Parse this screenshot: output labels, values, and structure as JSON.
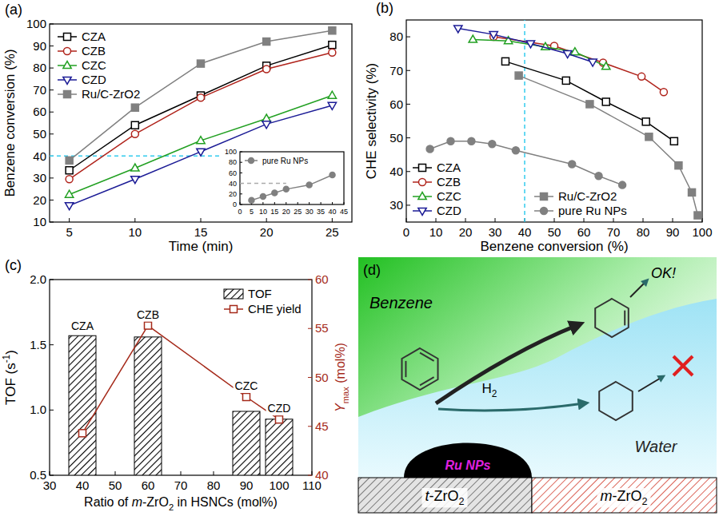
{
  "chart_data": [
    {
      "panel": "(a)",
      "type": "line",
      "xlabel": "Time (min)",
      "ylabel": "Benzene conversion (%)",
      "x": [
        5,
        10,
        15,
        20,
        25
      ],
      "xlim": [
        3.5,
        26.5
      ],
      "xticks": [
        5,
        10,
        15,
        20,
        25
      ],
      "ylim": [
        10,
        100
      ],
      "yticks": [
        10,
        20,
        30,
        40,
        50,
        60,
        70,
        80,
        90,
        100
      ],
      "legend": "upper left",
      "series": [
        {
          "name": "CZA",
          "color": "#000000",
          "marker": "square-open",
          "values": [
            33.5,
            54,
            67.5,
            81,
            90.5
          ]
        },
        {
          "name": "CZB",
          "color": "#b0231b",
          "marker": "circle-open",
          "values": [
            29.5,
            50,
            66.5,
            79.5,
            87
          ]
        },
        {
          "name": "CZC",
          "color": "#22a022",
          "marker": "triangle-up-open",
          "values": [
            22.5,
            34.5,
            47,
            57,
            67.5
          ]
        },
        {
          "name": "CZD",
          "color": "#1c1c96",
          "marker": "triangle-down-open",
          "values": [
            17.5,
            29.5,
            42,
            54.5,
            63
          ]
        },
        {
          "name": "Ru/C-ZrO2",
          "color": "#808080",
          "marker": "square",
          "values": [
            38,
            62,
            82,
            92,
            97
          ]
        }
      ],
      "reference_lines": [
        {
          "axis": "y",
          "value": 40,
          "x_end": 16.5,
          "color": "#33ccee",
          "line_style": "dashed"
        }
      ],
      "inset": {
        "type": "line",
        "legend": "upper left",
        "xlim": [
          0,
          45
        ],
        "xticks": [
          0,
          5,
          10,
          15,
          20,
          25,
          30,
          35,
          40,
          45
        ],
        "ylim": [
          0,
          100
        ],
        "yticks": [
          0,
          20,
          40,
          60,
          80,
          100
        ],
        "series": [
          {
            "name": "pure Ru NPs",
            "color": "#808080",
            "marker": "circle",
            "x": [
              5,
              10,
              15,
              20,
              30,
              40
            ],
            "values": [
              8,
              15,
              22,
              29,
              37,
              56
            ]
          }
        ],
        "reference_lines": [
          {
            "axis": "y",
            "value": 40,
            "x_end": 20,
            "color": "#aaaaaa",
            "line_style": "dashed"
          }
        ]
      }
    },
    {
      "panel": "(b)",
      "type": "line",
      "xlabel": "Benzene conversion (%)",
      "ylabel": "CHE selectivity (%)",
      "xlim": [
        0,
        100
      ],
      "xticks": [
        0,
        10,
        20,
        30,
        40,
        50,
        60,
        70,
        80,
        90,
        100
      ],
      "ylim": [
        25,
        85
      ],
      "yticks": [
        30,
        40,
        50,
        60,
        70,
        80
      ],
      "legend": "lower left",
      "series": [
        {
          "name": "CZA",
          "color": "#000000",
          "marker": "square-open",
          "x": [
            33.5,
            54,
            67.5,
            81,
            90.5
          ],
          "values": [
            72.7,
            67,
            60.7,
            54.8,
            49
          ]
        },
        {
          "name": "CZB",
          "color": "#b0231b",
          "marker": "circle-open",
          "x": [
            29.5,
            50,
            66.5,
            79.5,
            87
          ],
          "values": [
            80,
            77.3,
            72.3,
            68.2,
            63.6
          ]
        },
        {
          "name": "CZC",
          "color": "#22a022",
          "marker": "triangle-up-open",
          "x": [
            22.5,
            34.5,
            47,
            57,
            67.5
          ],
          "values": [
            79.2,
            78.8,
            77,
            75.5,
            71.2
          ]
        },
        {
          "name": "CZD",
          "color": "#1c1c96",
          "marker": "triangle-down-open",
          "x": [
            17.5,
            29.5,
            42,
            54.5,
            63
          ],
          "values": [
            82.5,
            80.7,
            78,
            75,
            72.5
          ]
        },
        {
          "name": "Ru/C-ZrO2",
          "color": "#808080",
          "marker": "square",
          "x": [
            38,
            62,
            82,
            92,
            96.5,
            98.5
          ],
          "values": [
            68.5,
            60,
            50.3,
            41.8,
            33.8,
            27
          ]
        },
        {
          "name": "pure Ru NPs",
          "color": "#808080",
          "marker": "circle",
          "x": [
            8,
            15,
            22,
            29,
            37,
            56,
            65,
            73
          ],
          "values": [
            46.7,
            49,
            49,
            48.2,
            46.3,
            42.2,
            38.7,
            36
          ]
        }
      ],
      "reference_lines": [
        {
          "axis": "x",
          "value": 40,
          "color": "#33ccee",
          "line_style": "dashed"
        }
      ]
    },
    {
      "panel": "(c)",
      "type": "bar",
      "x": [
        40,
        60,
        90,
        100
      ],
      "categories": [
        "CZA",
        "CZB",
        "CZC",
        "CZD"
      ],
      "xlabel": [
        {
          "t": "Ratio of "
        },
        {
          "t": "m",
          "i": true
        },
        {
          "t": "-ZrO"
        },
        {
          "t": "2",
          "sub": true
        },
        {
          "t": " in HSNCs (mol%)"
        }
      ],
      "ylabel": [
        {
          "t": "TOF (s"
        },
        {
          "t": "-1",
          "sup": true
        },
        {
          "t": ")"
        }
      ],
      "y2label": [
        {
          "t": "Y",
          "i": true
        },
        {
          "t": "max",
          "sub": true
        },
        {
          "t": " (mol%)"
        }
      ],
      "xlim": [
        30,
        110
      ],
      "xticks": [
        30,
        40,
        50,
        60,
        70,
        80,
        90,
        100,
        110
      ],
      "ylim": [
        0.5,
        2.0
      ],
      "yticks": [
        0.5,
        {
          "value": 1,
          "label": "1.0"
        },
        1.5,
        {
          "value": 2,
          "label": "2.0"
        }
      ],
      "y2lim": [
        40,
        60
      ],
      "y2ticks": [
        40,
        45,
        50,
        55,
        60
      ],
      "legend": "upper right",
      "series": [
        {
          "name": "TOF",
          "type": "bar",
          "color": "#000000",
          "values": [
            1.57,
            1.56,
            0.99,
            0.93
          ]
        },
        {
          "name": "CHE yield",
          "type": "line",
          "axis": "y2",
          "color": "#a52a1a",
          "marker": "square-open",
          "values": [
            44.3,
            55.3,
            48,
            45.7
          ]
        }
      ]
    }
  ],
  "diagram": {
    "panel": "(d)",
    "labels": {
      "reactant": "Benzene",
      "solvent": "Water",
      "gas": [
        {
          "t": "H"
        },
        {
          "t": "2",
          "sub": true
        }
      ],
      "desired": "OK!",
      "catalyst": "Ru NPs",
      "support_left": [
        {
          "t": "t",
          "i": true
        },
        {
          "t": "-ZrO"
        },
        {
          "t": "2",
          "sub": true
        }
      ],
      "support_right": [
        {
          "t": "m",
          "i": true
        },
        {
          "t": "-ZrO"
        },
        {
          "t": "2",
          "sub": true
        }
      ]
    }
  }
}
